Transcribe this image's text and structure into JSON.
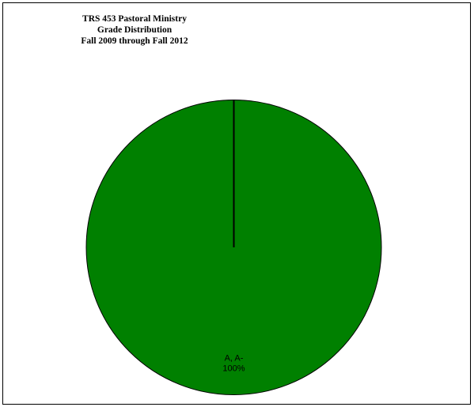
{
  "chart_data": {
    "type": "pie",
    "title": [
      "TRS 453 Pastoral Ministry",
      "Grade Distribution",
      "Fall 2009 through Fall 2012"
    ],
    "categories": [
      "A, A-"
    ],
    "values": [
      100
    ],
    "labels": [
      "100%"
    ],
    "colors": [
      "#008000"
    ],
    "legend": "none"
  }
}
